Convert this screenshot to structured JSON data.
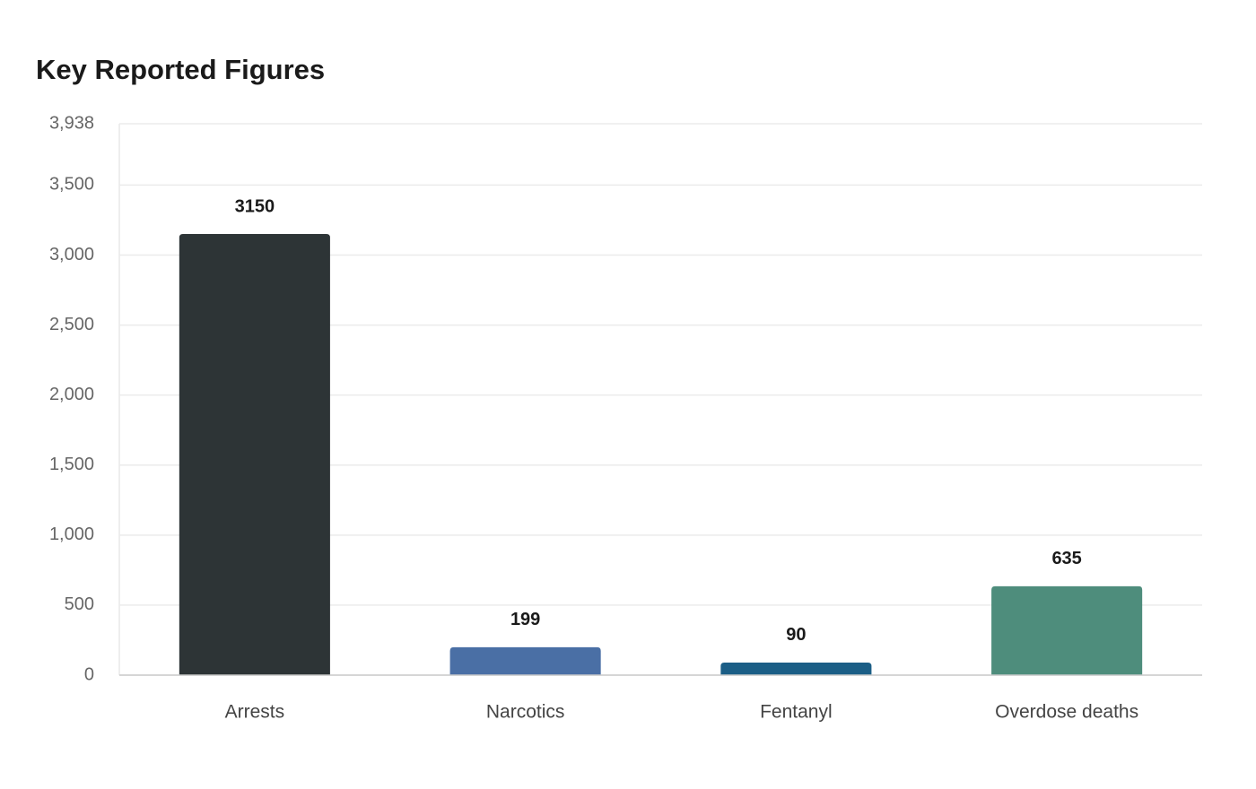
{
  "chart_data": {
    "type": "bar",
    "title": "Key Reported Figures",
    "categories": [
      "Arrests",
      "Narcotics",
      "Fentanyl",
      "Overdose deaths"
    ],
    "values": [
      3150,
      199,
      90,
      635
    ],
    "colors": [
      "#2d3436",
      "#4a6fa5",
      "#1b5e86",
      "#4e8d7c"
    ],
    "ylim": [
      0,
      3938
    ],
    "yticks": [
      0,
      500,
      {
        "value": 1000,
        "label": "1,000"
      },
      {
        "value": 1500,
        "label": "1,500"
      },
      {
        "value": 2000,
        "label": "2,000"
      },
      {
        "value": 2500,
        "label": "2,500"
      },
      {
        "value": 3000,
        "label": "3,000"
      },
      {
        "value": 3500,
        "label": "3,500"
      },
      {
        "value": 3938,
        "label": "3,938"
      }
    ],
    "grid": true
  }
}
